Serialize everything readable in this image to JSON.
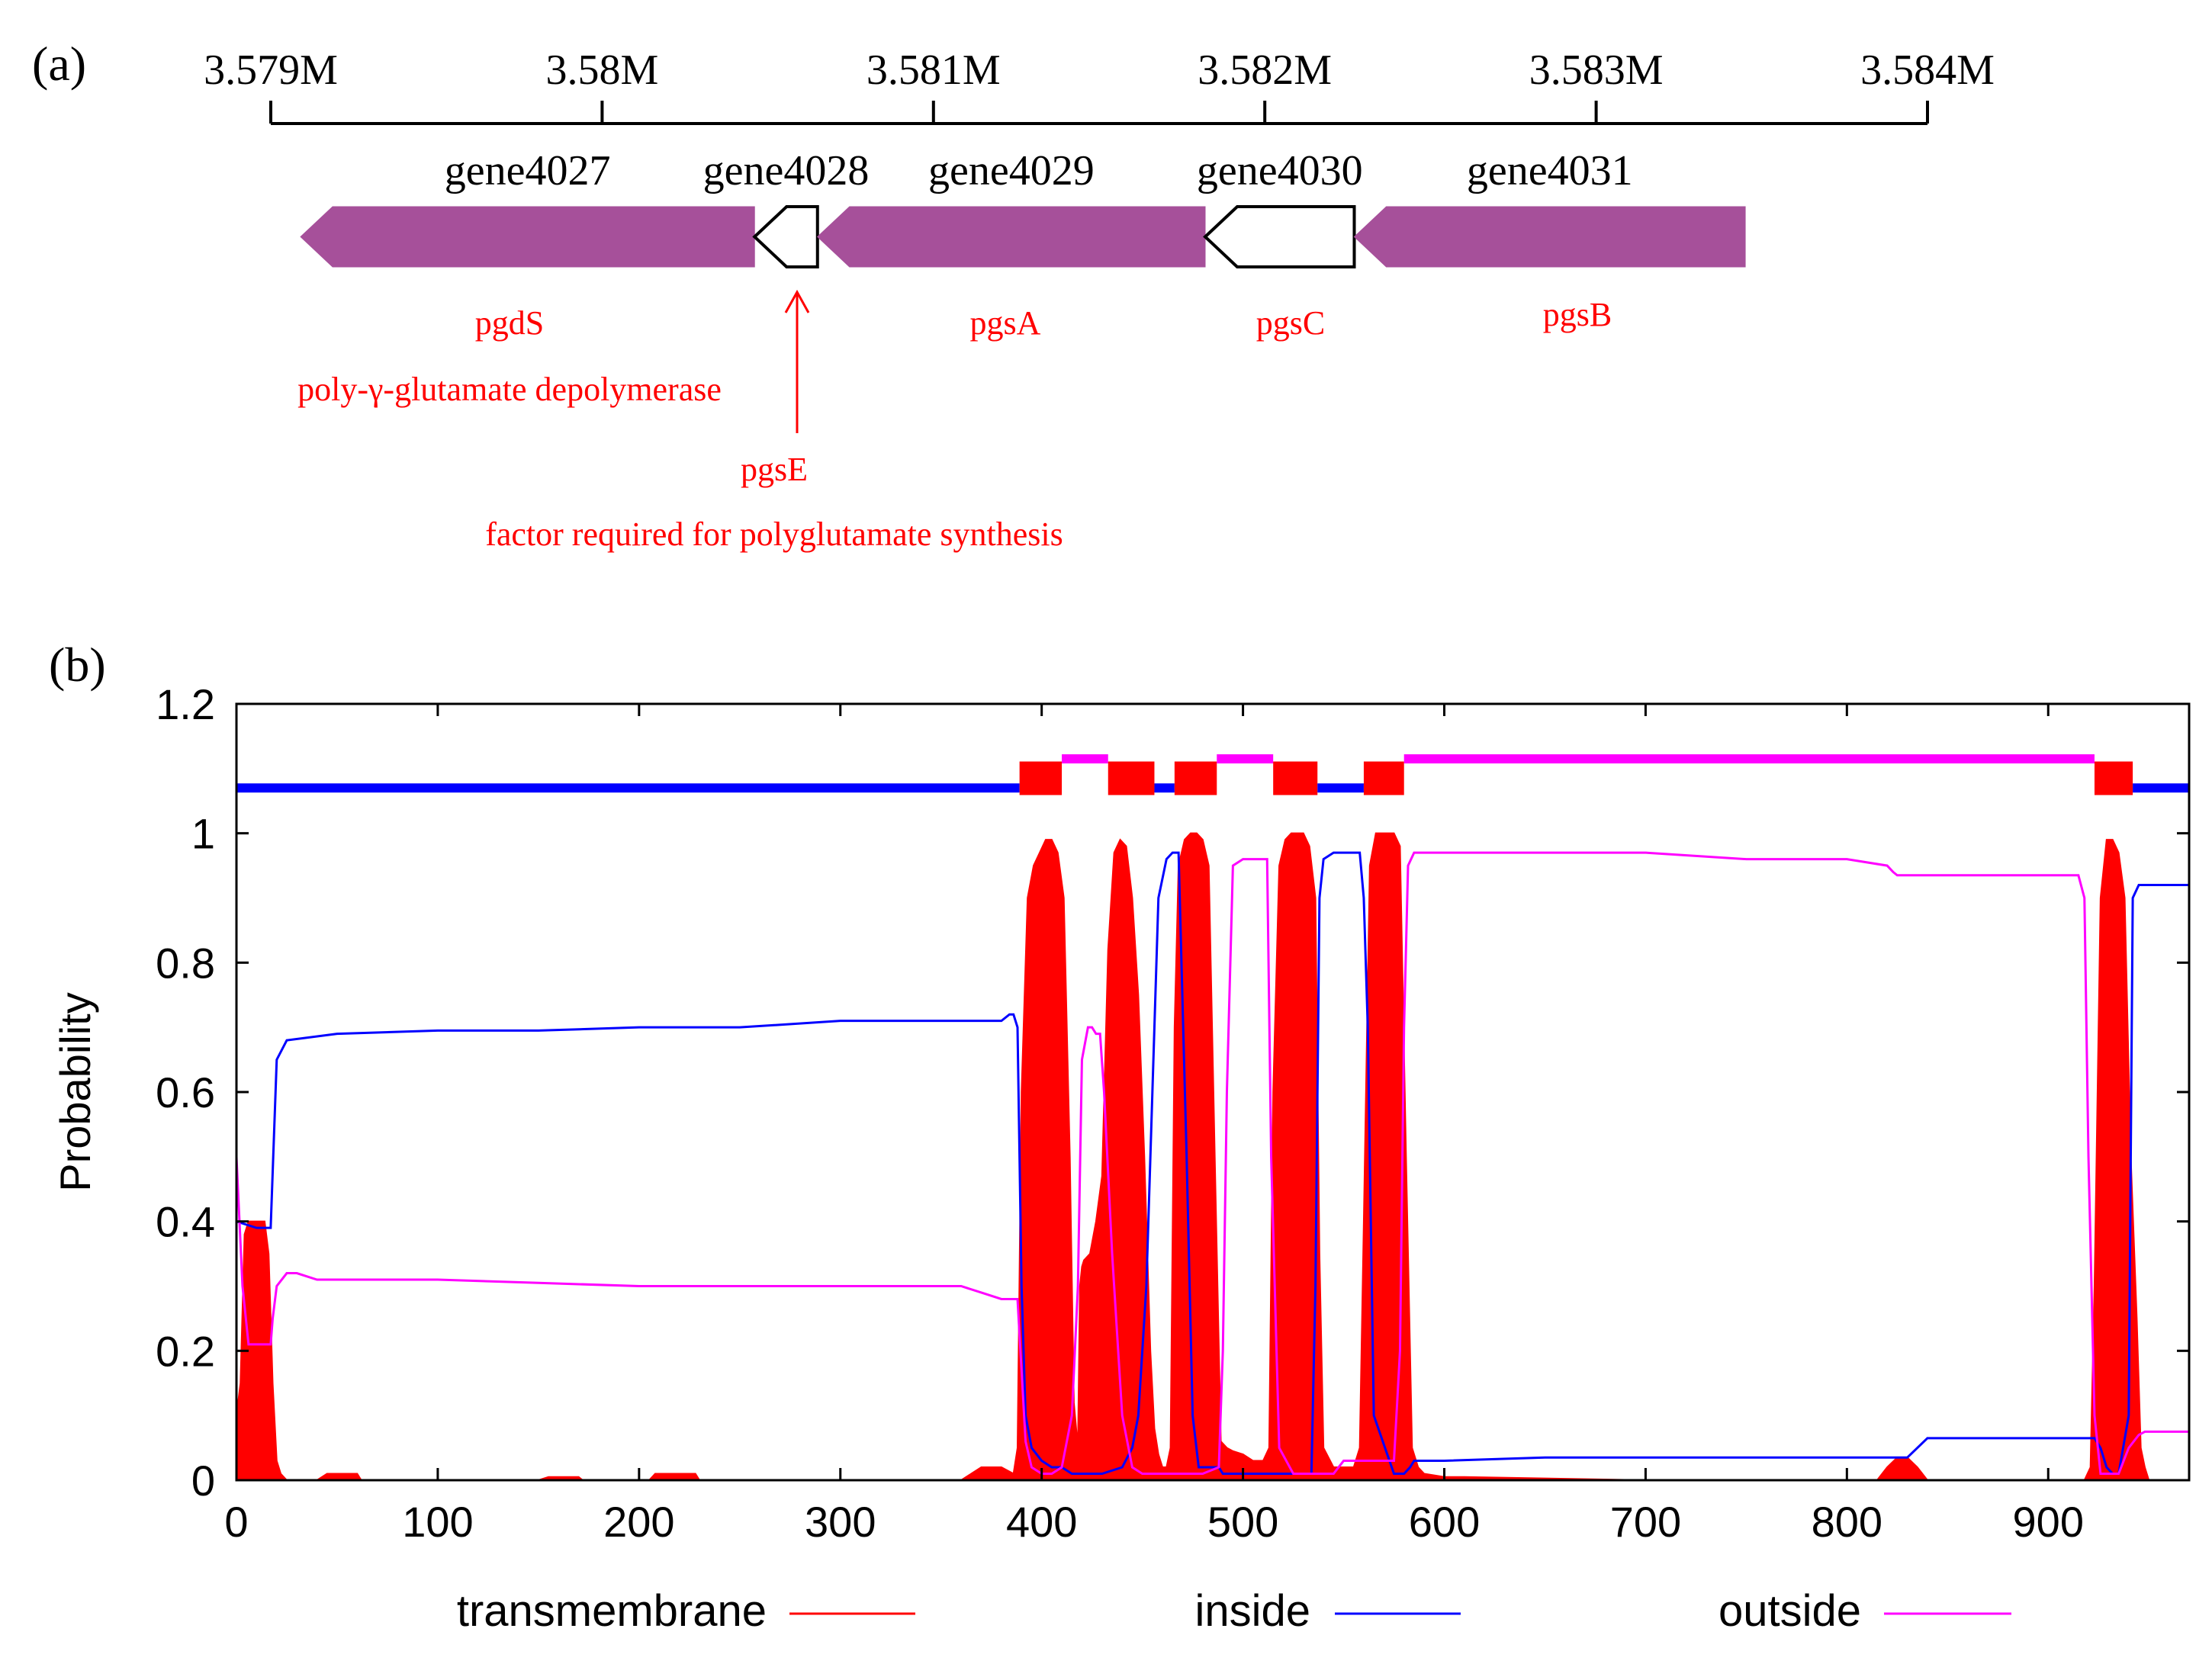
{
  "panel_a": {
    "label": "(a)",
    "ruler": {
      "ticks": [
        {
          "pos": 3579000,
          "label": "3.579M"
        },
        {
          "pos": 3580000,
          "label": "3.58M"
        },
        {
          "pos": 3581000,
          "label": "3.581M"
        },
        {
          "pos": 3582000,
          "label": "3.582M"
        },
        {
          "pos": 3583000,
          "label": "3.583M"
        },
        {
          "pos": 3584000,
          "label": "3.584M"
        }
      ],
      "range": [
        3579000,
        3584000
      ]
    },
    "genes": [
      {
        "id": "gene4027",
        "start": 3579090,
        "end": 3580460,
        "strand": "-",
        "fill": "#a6509a",
        "name": "pgdS",
        "product": "poly-γ-glutamate depolymerase"
      },
      {
        "id": "gene4028",
        "start": 3580460,
        "end": 3580650,
        "strand": "-",
        "fill": "#ffffff",
        "name": "pgsE",
        "product": "factor required for polyglutamate synthesis"
      },
      {
        "id": "gene4029",
        "start": 3580650,
        "end": 3581820,
        "strand": "-",
        "fill": "#a6509a",
        "name": "pgsA",
        "product": ""
      },
      {
        "id": "gene4030",
        "start": 3581820,
        "end": 3582270,
        "strand": "-",
        "fill": "#ffffff",
        "name": "pgsC",
        "product": ""
      },
      {
        "id": "gene4031",
        "start": 3582270,
        "end": 3583450,
        "strand": "-",
        "fill": "#a6509a",
        "name": "pgsB",
        "product": ""
      }
    ]
  },
  "panel_b": {
    "label": "(b)"
  },
  "chart_data": {
    "type": "line",
    "title": "",
    "xlabel": "",
    "ylabel": "Probability",
    "xlim": [
      0,
      970
    ],
    "ylim": [
      0,
      1.2
    ],
    "xticks": [
      0,
      100,
      200,
      300,
      400,
      500,
      600,
      700,
      800,
      900
    ],
    "yticks": [
      0,
      0.2,
      0.4,
      0.6,
      0.8,
      1,
      1.2
    ],
    "ytick_labels": [
      "0",
      "0.2",
      "0.4",
      "0.6",
      "0.8",
      "1",
      "1.2"
    ],
    "legend": {
      "placement": "bottom",
      "entries": [
        {
          "name": "transmembrane",
          "color": "#ff0000"
        },
        {
          "name": "inside",
          "color": "#0000ff"
        },
        {
          "name": "outside",
          "color": "#ff00ff"
        }
      ]
    },
    "topology_bar": {
      "inside_y": 1.07,
      "outside_y": 1.115,
      "tm_y": 1.085,
      "segments": [
        {
          "type": "inside",
          "from": 0,
          "to": 389
        },
        {
          "type": "tm",
          "from": 389,
          "to": 410
        },
        {
          "type": "outside",
          "from": 410,
          "to": 433
        },
        {
          "type": "tm",
          "from": 433,
          "to": 456
        },
        {
          "type": "inside",
          "from": 456,
          "to": 466
        },
        {
          "type": "tm",
          "from": 466,
          "to": 487
        },
        {
          "type": "outside",
          "from": 487,
          "to": 515
        },
        {
          "type": "tm",
          "from": 515,
          "to": 537
        },
        {
          "type": "inside",
          "from": 537,
          "to": 560
        },
        {
          "type": "tm",
          "from": 560,
          "to": 580
        },
        {
          "type": "outside",
          "from": 580,
          "to": 923
        },
        {
          "type": "tm",
          "from": 923,
          "to": 942
        },
        {
          "type": "inside",
          "from": 942,
          "to": 970
        }
      ]
    },
    "series": [
      {
        "name": "transmembrane",
        "color": "#ff0000",
        "x": [
          0,
          2,
          4,
          6,
          8,
          10,
          12,
          14,
          16,
          18,
          20,
          22,
          25,
          40,
          45,
          50,
          55,
          60,
          62,
          150,
          155,
          160,
          165,
          170,
          172,
          205,
          208,
          210,
          215,
          220,
          225,
          228,
          230,
          360,
          365,
          370,
          375,
          380,
          383,
          386,
          388,
          390,
          393,
          396,
          399,
          402,
          405,
          408,
          411,
          414,
          416,
          418,
          419,
          420,
          421,
          424,
          427,
          430,
          433,
          436,
          439,
          442,
          445,
          448,
          451,
          454,
          456,
          458,
          460,
          462,
          464,
          466,
          468,
          471,
          474,
          477,
          480,
          483,
          486,
          489,
          492,
          495,
          500,
          505,
          510,
          513,
          515,
          518,
          521,
          524,
          527,
          530,
          533,
          536,
          538,
          540,
          545,
          550,
          555,
          558,
          560,
          563,
          566,
          569,
          572,
          575,
          578,
          581,
          584,
          587,
          590,
          600,
          610,
          700,
          800,
          815,
          820,
          825,
          830,
          835,
          840,
          850,
          900,
          918,
          921,
          923,
          926,
          929,
          932,
          935,
          938,
          941,
          944,
          946,
          948,
          950,
          955,
          970
        ],
        "y": [
          0.1,
          0.15,
          0.38,
          0.4,
          0.4,
          0.4,
          0.4,
          0.4,
          0.35,
          0.15,
          0.03,
          0.01,
          0,
          0,
          0.01,
          0.01,
          0.01,
          0.01,
          0,
          0,
          0.005,
          0.005,
          0.005,
          0.005,
          0,
          0,
          0.01,
          0.01,
          0.01,
          0.01,
          0.01,
          0.01,
          0,
          0,
          0.01,
          0.02,
          0.02,
          0.02,
          0.015,
          0.01,
          0.05,
          0.6,
          0.9,
          0.95,
          0.97,
          0.99,
          0.99,
          0.97,
          0.9,
          0.5,
          0.12,
          0.05,
          0.3,
          0.33,
          0.34,
          0.35,
          0.4,
          0.47,
          0.82,
          0.97,
          0.99,
          0.98,
          0.9,
          0.75,
          0.5,
          0.2,
          0.08,
          0.04,
          0.02,
          0.02,
          0.05,
          0.7,
          0.95,
          0.99,
          1.0,
          1.0,
          0.99,
          0.95,
          0.5,
          0.06,
          0.05,
          0.045,
          0.04,
          0.03,
          0.03,
          0.05,
          0.6,
          0.95,
          0.99,
          1.0,
          1.0,
          1.0,
          0.98,
          0.9,
          0.35,
          0.05,
          0.02,
          0.02,
          0.02,
          0.05,
          0.4,
          0.95,
          1.0,
          1.0,
          1.0,
          1.0,
          0.98,
          0.5,
          0.05,
          0.02,
          0.01,
          0.005,
          0.005,
          0,
          0,
          0,
          0.02,
          0.035,
          0.035,
          0.02,
          0,
          0,
          0,
          0,
          0.02,
          0.3,
          0.9,
          0.99,
          0.99,
          0.97,
          0.9,
          0.5,
          0.25,
          0.05,
          0.02,
          0,
          0,
          0
        ]
      },
      {
        "name": "inside",
        "color": "#0000ff",
        "x": [
          0,
          10,
          17,
          20,
          25,
          50,
          100,
          150,
          200,
          250,
          300,
          350,
          370,
          380,
          384,
          386,
          388,
          390,
          392,
          395,
          400,
          405,
          410,
          415,
          420,
          430,
          440,
          445,
          448,
          450,
          452,
          455,
          458,
          462,
          465,
          468,
          472,
          475,
          478,
          482,
          486,
          488,
          490,
          492,
          495,
          500,
          510,
          520,
          530,
          534,
          536,
          538,
          540,
          545,
          550,
          555,
          558,
          560,
          562,
          565,
          575,
          580,
          583,
          585,
          590,
          600,
          650,
          700,
          750,
          800,
          830,
          840,
          850,
          880,
          900,
          920,
          923,
          926,
          929,
          932,
          935,
          940,
          942,
          945,
          948,
          950,
          960,
          970
        ],
        "y": [
          0.4,
          0.39,
          0.39,
          0.65,
          0.68,
          0.69,
          0.695,
          0.695,
          0.7,
          0.7,
          0.71,
          0.71,
          0.71,
          0.71,
          0.72,
          0.72,
          0.7,
          0.3,
          0.1,
          0.05,
          0.03,
          0.02,
          0.02,
          0.01,
          0.01,
          0.01,
          0.02,
          0.05,
          0.1,
          0.2,
          0.3,
          0.6,
          0.9,
          0.96,
          0.97,
          0.97,
          0.5,
          0.1,
          0.02,
          0.02,
          0.02,
          0.02,
          0.01,
          0.01,
          0.01,
          0.01,
          0.01,
          0.01,
          0.01,
          0.01,
          0.3,
          0.9,
          0.96,
          0.97,
          0.97,
          0.97,
          0.97,
          0.9,
          0.7,
          0.1,
          0.01,
          0.01,
          0.02,
          0.03,
          0.03,
          0.03,
          0.035,
          0.035,
          0.035,
          0.035,
          0.035,
          0.065,
          0.065,
          0.065,
          0.065,
          0.065,
          0.065,
          0.05,
          0.02,
          0.01,
          0.01,
          0.1,
          0.9,
          0.92,
          0.92,
          0.92,
          0.92,
          0.92
        ]
      },
      {
        "name": "outside",
        "color": "#ff00ff",
        "x": [
          0,
          3,
          6,
          10,
          15,
          17,
          18,
          20,
          25,
          30,
          40,
          50,
          100,
          150,
          200,
          250,
          300,
          350,
          360,
          370,
          380,
          384,
          386,
          388,
          392,
          395,
          400,
          405,
          410,
          415,
          418,
          420,
          423,
          425,
          427,
          429,
          431,
          435,
          440,
          445,
          450,
          455,
          460,
          465,
          470,
          480,
          488,
          490,
          492,
          495,
          500,
          505,
          510,
          512,
          514,
          518,
          525,
          535,
          538,
          540,
          545,
          550,
          555,
          560,
          565,
          575,
          578,
          580,
          582,
          585,
          588,
          590,
          600,
          650,
          700,
          750,
          800,
          820,
          823,
          825,
          830,
          850,
          900,
          915,
          918,
          920,
          923,
          926,
          929,
          932,
          935,
          940,
          945,
          948,
          950,
          960,
          970
        ],
        "y": [
          0.5,
          0.3,
          0.21,
          0.21,
          0.21,
          0.21,
          0.25,
          0.3,
          0.32,
          0.32,
          0.31,
          0.31,
          0.31,
          0.305,
          0.3,
          0.3,
          0.3,
          0.3,
          0.3,
          0.29,
          0.28,
          0.28,
          0.28,
          0.28,
          0.06,
          0.02,
          0.01,
          0.01,
          0.02,
          0.1,
          0.3,
          0.65,
          0.7,
          0.7,
          0.69,
          0.69,
          0.6,
          0.35,
          0.1,
          0.02,
          0.01,
          0.01,
          0.01,
          0.01,
          0.01,
          0.01,
          0.02,
          0.2,
          0.6,
          0.95,
          0.96,
          0.96,
          0.96,
          0.96,
          0.5,
          0.05,
          0.01,
          0.01,
          0.01,
          0.01,
          0.01,
          0.03,
          0.03,
          0.03,
          0.03,
          0.03,
          0.2,
          0.7,
          0.95,
          0.97,
          0.97,
          0.97,
          0.97,
          0.97,
          0.97,
          0.96,
          0.96,
          0.95,
          0.94,
          0.935,
          0.935,
          0.935,
          0.935,
          0.935,
          0.9,
          0.5,
          0.1,
          0.01,
          0.01,
          0.01,
          0.01,
          0.05,
          0.07,
          0.075,
          0.075,
          0.075,
          0.075
        ]
      }
    ]
  }
}
